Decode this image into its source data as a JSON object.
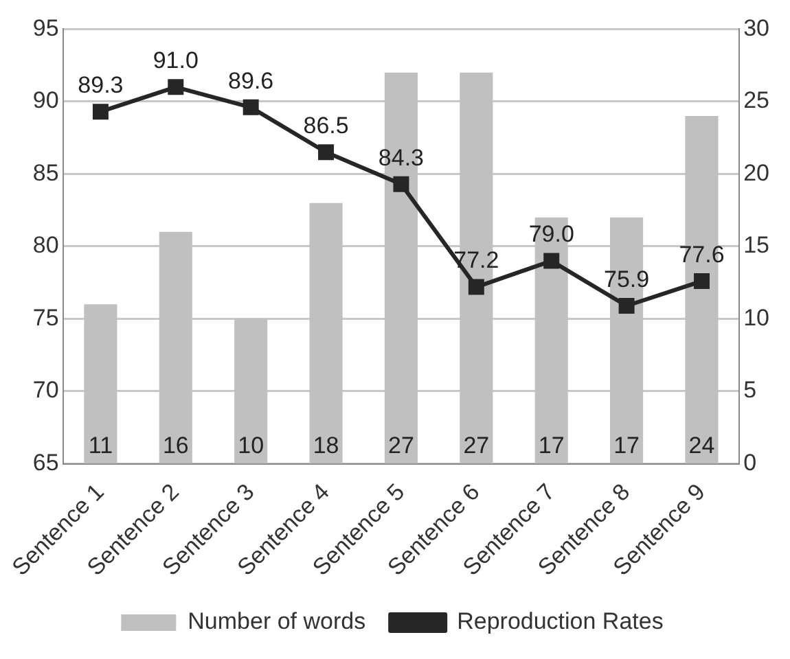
{
  "chart_data": {
    "type": "bar",
    "categories": [
      "Sentence 1",
      "Sentence 2",
      "Sentence 3",
      "Sentence 4",
      "Sentence 5",
      "Sentence 6",
      "Sentence 7",
      "Sentence 8",
      "Sentence 9"
    ],
    "series": [
      {
        "name": "Number of words",
        "axis": "y2",
        "color": "#c0c0c0",
        "values": [
          11,
          16,
          10,
          18,
          27,
          27,
          17,
          17,
          24
        ]
      },
      {
        "name": "Reproduction Rates",
        "type": "line",
        "color": "#262626",
        "values": [
          89.3,
          91.0,
          89.6,
          86.5,
          84.3,
          77.2,
          79.0,
          75.9,
          77.6
        ],
        "value_labels": [
          "89.3",
          "91.0",
          "89.6",
          "86.5",
          "84.3",
          "77.2",
          "79.0",
          "75.9",
          "77.6"
        ]
      }
    ],
    "ylim": [
      65,
      95
    ],
    "yticks": [
      65,
      70,
      75,
      80,
      85,
      90,
      95
    ],
    "y2lim": [
      0,
      30
    ],
    "y2ticks": [
      0,
      5,
      10,
      15,
      20,
      25,
      30
    ],
    "grid": "y",
    "legend": "bottom",
    "marker": "square",
    "data_labels": true
  }
}
